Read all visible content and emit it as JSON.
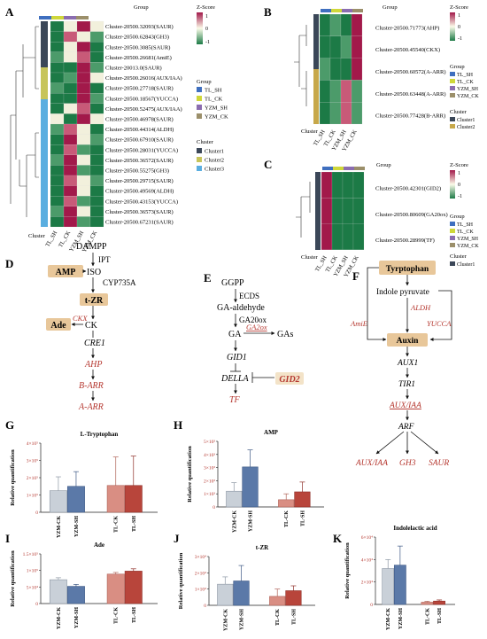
{
  "panels": {
    "A": {
      "letter": "A",
      "header": "Group",
      "zscore": {
        "title": "Z-Score",
        "ticks": [
          "1",
          "0",
          "-1"
        ]
      },
      "genes": [
        "Cluster-20500.32093(SAUR)",
        "Cluster-20500.62843(GH3)",
        "Cluster-20500.3085(SAUR)",
        "Cluster-20500.26681(AmiE)",
        "Cluster-20013.0(SAUR)",
        "Cluster-20500.26016(AUX/IAA)",
        "Cluster-20500.27718(SAUR)",
        "Cluster-20500.18567(YUCCA)",
        "Cluster-20500.52475(AUX/IAA)",
        "Cluster-20500.46978(SAUR)",
        "Cluster-20500.44314(ALDH)",
        "Cluster-20500.67910(SAUR)",
        "Cluster-20500.28031(YUCCA)",
        "Cluster-20500.36572(SAUR)",
        "Cluster-20500.55275(GH3)",
        "Cluster-20500.29715(SAUR)",
        "Cluster-20500.49569(ALDH)",
        "Cluster-20500.43153(YUCCA)",
        "Cluster-20500.36573(SAUR)",
        "Cluster-20500.67231(SAUR)"
      ],
      "columns": [
        "TL_SH",
        "TL_CK",
        "YZM_SH",
        "YZM_CK"
      ],
      "group_legend_title": "Group",
      "group_legend": [
        "TL_SH",
        "TL_CK",
        "YZM_SH",
        "YZM_CK"
      ],
      "cluster_label": "Cluster",
      "cluster_legend_title": "Cluster",
      "cluster_legend": [
        "Cluster1",
        "Cluster2",
        "Cluster3"
      ]
    },
    "B": {
      "letter": "B",
      "header": "Group",
      "zscore": {
        "title": "Z-Score",
        "ticks": [
          "1",
          "0",
          "-1"
        ]
      },
      "genes": [
        "Cluster-20500.71773(AHP)",
        "Cluster-20500.45540(CKX)",
        "Cluster-20500.60572(A-ARR)",
        "Cluster-20500.63448(A-ARR)",
        "Cluster-20500.77428(B-ARR)"
      ],
      "columns": [
        "TL_SH",
        "TL_CK",
        "YZM_SH",
        "YZM_CK"
      ],
      "group_legend_title": "Group",
      "group_legend": [
        "TL_SH",
        "TL_CK",
        "YZM_SH",
        "YZM_CK"
      ],
      "cluster_label": "Cluster",
      "cluster_legend_title": "Cluster",
      "cluster_legend": [
        "Cluster1",
        "Cluster2"
      ]
    },
    "C": {
      "letter": "C",
      "header": "Group",
      "zscore": {
        "title": "Z-Score",
        "ticks": [
          "1",
          "0",
          "-1"
        ]
      },
      "genes": [
        "Cluster-20500.42301(GID2)",
        "Cluster-20500.80609(GA20ox)",
        "Cluster-20500.28999(TF)"
      ],
      "columns": [
        "TL_SH",
        "TL_CK",
        "YZM_SH",
        "YZM_CK"
      ],
      "group_legend_title": "Group",
      "group_legend": [
        "TL_SH",
        "TL_CK",
        "YZM_SH",
        "YZM_CK"
      ],
      "cluster_label": "Cluster",
      "cluster_legend_title": "Cluster",
      "cluster_legend": [
        "Cluster1"
      ]
    },
    "D": {
      "letter": "D",
      "dampp": "DAMPP",
      "ipt": "IPT",
      "amp": "AMP",
      "iso": "ISO",
      "cyp": "CYP735A",
      "tzr": "t-ZR",
      "ade": "Ade",
      "ckx": "CKX",
      "ck": "CK",
      "cre1": "CRE1",
      "ahp": "AHP",
      "barr": "B-ARR",
      "aarr": "A-ARR"
    },
    "E": {
      "letter": "E",
      "ggpp": "GGPP",
      "ecds": "ECDS",
      "gaald": "GA-aldehyde",
      "ga20ox": "GA20ox",
      "ga": "GA",
      "ga2ox": "GA2ox",
      "gas": "GAs",
      "gid1": "GID1",
      "della": "DELLA",
      "gid2": "GID2",
      "tf": "TF"
    },
    "F": {
      "letter": "F",
      "trp": "Tyrptophan",
      "ipyr": "Indole pyruvate",
      "amie": "AmiE",
      "aldh": "ALDH",
      "yucca": "YUCCA",
      "auxin": "Auxin",
      "aux1": "AUX1",
      "tir1": "TIR1",
      "auxiaa": "AUX/IAA",
      "arf": "ARF",
      "out1": "AUX/IAA",
      "out2": "GH3",
      "out3": "SAUR"
    }
  },
  "bar_letters": {
    "G": "G",
    "H": "H",
    "I": "I",
    "J": "J",
    "K": "K"
  },
  "colors": {
    "yzm_ck": "#c9d0d8",
    "yzm_sh": "#5b79a8",
    "tl_ck": "#d98e83",
    "tl_sh": "#b8453b",
    "node_fill": "#e8c79a",
    "red_label": "#b5372f"
  },
  "chart_data": [
    {
      "panel": "G",
      "type": "bar",
      "title": "L-Tryptophan",
      "ylabel": "Relative quantification",
      "categories": [
        "YZM-CK",
        "YZM-SH",
        "TL-CK",
        "TL-SH"
      ],
      "values": [
        125000,
        150000,
        155000,
        155000
      ],
      "errors": [
        80000,
        85000,
        165000,
        170000
      ],
      "ylim": [
        0,
        400000
      ],
      "yticks": [
        "0",
        "1×10⁵",
        "2×10⁵",
        "3×10⁵",
        "4×10⁵"
      ]
    },
    {
      "panel": "H",
      "type": "bar",
      "title": "AMP",
      "ylabel": "Relative quantification",
      "categories": [
        "YZM-CK",
        "YZM-SH",
        "TL-CK",
        "TL-SH"
      ],
      "values": [
        1200,
        3050,
        550,
        1150
      ],
      "errors": [
        650,
        1300,
        450,
        750
      ],
      "ylim": [
        0,
        5000
      ],
      "yticks": [
        "0",
        "1×10³",
        "2×10³",
        "3×10³",
        "4×10³",
        "5×10³"
      ]
    },
    {
      "panel": "I",
      "type": "bar",
      "title": "Ade",
      "ylabel": "Relative quantification",
      "categories": [
        "YZM-CK",
        "YZM-SH",
        "TL-CK",
        "TL-SH"
      ],
      "values": [
        72000,
        52000,
        89000,
        98000
      ],
      "errors": [
        6000,
        6000,
        5000,
        7000
      ],
      "ylim": [
        0,
        150000
      ],
      "yticks": [
        "0",
        "5×10⁴",
        "1×10⁵",
        "1.5×10⁵"
      ]
    },
    {
      "panel": "J",
      "type": "bar",
      "title": "t-ZR",
      "ylabel": "Relative quantification",
      "categories": [
        "YZM-CK",
        "YZM-SH",
        "TL-CK",
        "TL-SH"
      ],
      "values": [
        13000,
        15000,
        5500,
        9000
      ],
      "errors": [
        4500,
        9500,
        4500,
        3000
      ],
      "ylim": [
        0,
        30000
      ],
      "yticks": [
        "0",
        "1×10⁴",
        "2×10⁴",
        "3×10⁴"
      ]
    },
    {
      "panel": "K",
      "type": "bar",
      "title": "Indolelactic acid",
      "ylabel": "Relative quantification",
      "categories": [
        "YZM-CK",
        "YZM-SH",
        "TL-CK",
        "TL-SH"
      ],
      "values": [
        32000,
        35000,
        2000,
        3000
      ],
      "errors": [
        8000,
        17000,
        800,
        1000
      ],
      "ylim": [
        0,
        60000
      ],
      "yticks": [
        "0",
        "2×10⁴",
        "4×10⁴",
        "6×10⁴"
      ]
    }
  ]
}
